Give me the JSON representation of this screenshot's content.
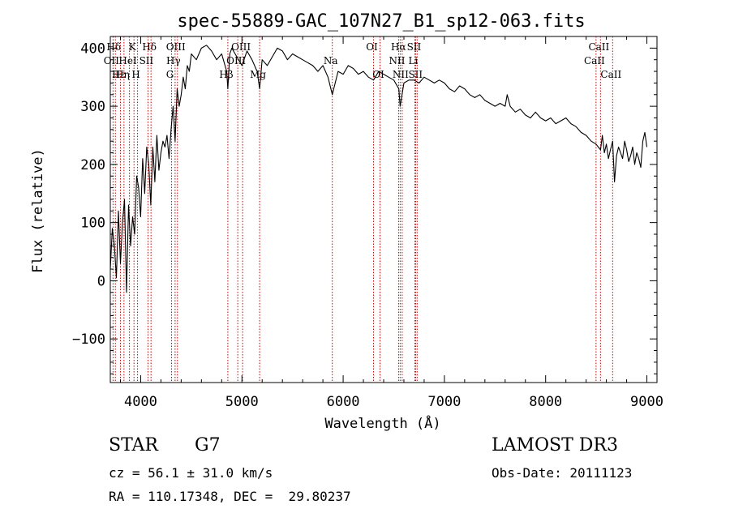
{
  "chart_data": {
    "type": "line",
    "title": "spec-55889-GAC_107N27_B1_sp12-063.fits",
    "xlabel": "Wavelength (Å)",
    "ylabel": "Flux (relative)",
    "xlim": [
      3700,
      9100
    ],
    "ylim": [
      -175,
      420
    ],
    "xticks": [
      4000,
      5000,
      6000,
      7000,
      8000,
      9000
    ],
    "yticks": [
      -100,
      0,
      100,
      200,
      300,
      400
    ],
    "ytick_labels": [
      "−100",
      "0",
      "100",
      "200",
      "300",
      "400"
    ],
    "grid": false,
    "series": [
      {
        "name": "flux",
        "x": [
          3700,
          3720,
          3740,
          3760,
          3780,
          3800,
          3820,
          3840,
          3860,
          3880,
          3900,
          3920,
          3940,
          3960,
          3980,
          4000,
          4020,
          4040,
          4060,
          4080,
          4100,
          4120,
          4140,
          4160,
          4180,
          4200,
          4220,
          4240,
          4260,
          4280,
          4300,
          4320,
          4340,
          4360,
          4380,
          4400,
          4420,
          4440,
          4460,
          4480,
          4500,
          4550,
          4600,
          4650,
          4700,
          4750,
          4800,
          4850,
          4861,
          4880,
          4900,
          4950,
          5000,
          5050,
          5100,
          5150,
          5175,
          5200,
          5250,
          5300,
          5350,
          5400,
          5450,
          5500,
          5550,
          5600,
          5650,
          5700,
          5750,
          5800,
          5850,
          5893,
          5950,
          6000,
          6050,
          6100,
          6150,
          6200,
          6250,
          6300,
          6350,
          6400,
          6450,
          6500,
          6550,
          6563,
          6600,
          6650,
          6700,
          6750,
          6800,
          6850,
          6900,
          6950,
          7000,
          7050,
          7100,
          7150,
          7200,
          7250,
          7300,
          7350,
          7400,
          7450,
          7500,
          7550,
          7600,
          7620,
          7650,
          7700,
          7750,
          7800,
          7850,
          7900,
          7950,
          8000,
          8050,
          8100,
          8150,
          8200,
          8250,
          8300,
          8350,
          8400,
          8450,
          8498,
          8520,
          8542,
          8560,
          8580,
          8600,
          8620,
          8640,
          8662,
          8680,
          8700,
          8720,
          8740,
          8760,
          8780,
          8800,
          8820,
          8840,
          8860,
          8880,
          8900,
          8920,
          8940,
          8960,
          8980,
          9000
        ],
        "y": [
          20,
          90,
          60,
          5,
          120,
          30,
          100,
          140,
          -20,
          130,
          60,
          110,
          80,
          180,
          160,
          110,
          210,
          150,
          230,
          200,
          130,
          230,
          170,
          250,
          190,
          220,
          240,
          230,
          250,
          210,
          260,
          300,
          240,
          330,
          300,
          320,
          350,
          330,
          370,
          360,
          390,
          380,
          400,
          405,
          395,
          380,
          390,
          360,
          330,
          390,
          400,
          385,
          370,
          395,
          380,
          360,
          330,
          380,
          370,
          385,
          400,
          395,
          380,
          390,
          385,
          380,
          375,
          370,
          360,
          370,
          350,
          320,
          360,
          355,
          370,
          365,
          355,
          360,
          350,
          345,
          360,
          355,
          350,
          345,
          330,
          300,
          340,
          345,
          345,
          340,
          350,
          345,
          340,
          345,
          340,
          330,
          325,
          335,
          330,
          320,
          315,
          320,
          310,
          305,
          300,
          305,
          300,
          320,
          300,
          290,
          295,
          285,
          280,
          290,
          280,
          275,
          280,
          270,
          275,
          280,
          270,
          265,
          255,
          250,
          240,
          235,
          230,
          225,
          250,
          220,
          235,
          210,
          225,
          240,
          170,
          215,
          230,
          220,
          210,
          240,
          225,
          205,
          215,
          230,
          200,
          220,
          210,
          195,
          240,
          255,
          230
        ]
      }
    ],
    "lines": [
      {
        "label": "Hδ",
        "x": 3750,
        "row": 0
      },
      {
        "label": "OII",
        "x": 3727,
        "row": 1
      },
      {
        "label": "Hε",
        "x": 3800,
        "row": 2
      },
      {
        "label": "K",
        "x": 3934,
        "row": 0
      },
      {
        "label": "HeI",
        "x": 3889,
        "row": 1
      },
      {
        "label": "Hη",
        "x": 3835,
        "row": 2
      },
      {
        "label": "SII",
        "x": 4072,
        "row": 1
      },
      {
        "label": "H",
        "x": 3969,
        "row": 2
      },
      {
        "label": "Hδ",
        "x": 4102,
        "row": 0
      },
      {
        "label": "OIII",
        "x": 4363,
        "row": 0
      },
      {
        "label": "Hγ",
        "x": 4340,
        "row": 1
      },
      {
        "label": "G",
        "x": 4305,
        "row": 2
      },
      {
        "label": "OIII",
        "x": 5007,
        "row": 0
      },
      {
        "label": "OIII",
        "x": 4959,
        "row": 1
      },
      {
        "label": "Hβ",
        "x": 4861,
        "row": 2
      },
      {
        "label": "Mg",
        "x": 5175,
        "row": 2
      },
      {
        "label": "Na",
        "x": 5893,
        "row": 1
      },
      {
        "label": "OI",
        "x": 6300,
        "row": 0
      },
      {
        "label": "OI",
        "x": 6364,
        "row": 2
      },
      {
        "label": "Hα",
        "x": 6563,
        "row": 0
      },
      {
        "label": "NII",
        "x": 6548,
        "row": 1
      },
      {
        "label": "NII",
        "x": 6583,
        "row": 2
      },
      {
        "label": "SII",
        "x": 6716,
        "row": 0
      },
      {
        "label": "Li",
        "x": 6708,
        "row": 1
      },
      {
        "label": "SII",
        "x": 6731,
        "row": 2
      },
      {
        "label": "CaII",
        "x": 8542,
        "row": 0
      },
      {
        "label": "CaII",
        "x": 8498,
        "row": 1
      },
      {
        "label": "CaII",
        "x": 8662,
        "row": 2
      }
    ],
    "line_color": "#cc0000",
    "series_color": "#000000"
  },
  "info": {
    "object_class": "STAR",
    "subclass": "G7",
    "survey": "LAMOST DR3",
    "redshift": "cz = 56.1 ± 31.0 km/s",
    "obs_date": "Obs-Date: 20111123",
    "coords": "RA = 110.17348, DEC =  29.80237"
  }
}
